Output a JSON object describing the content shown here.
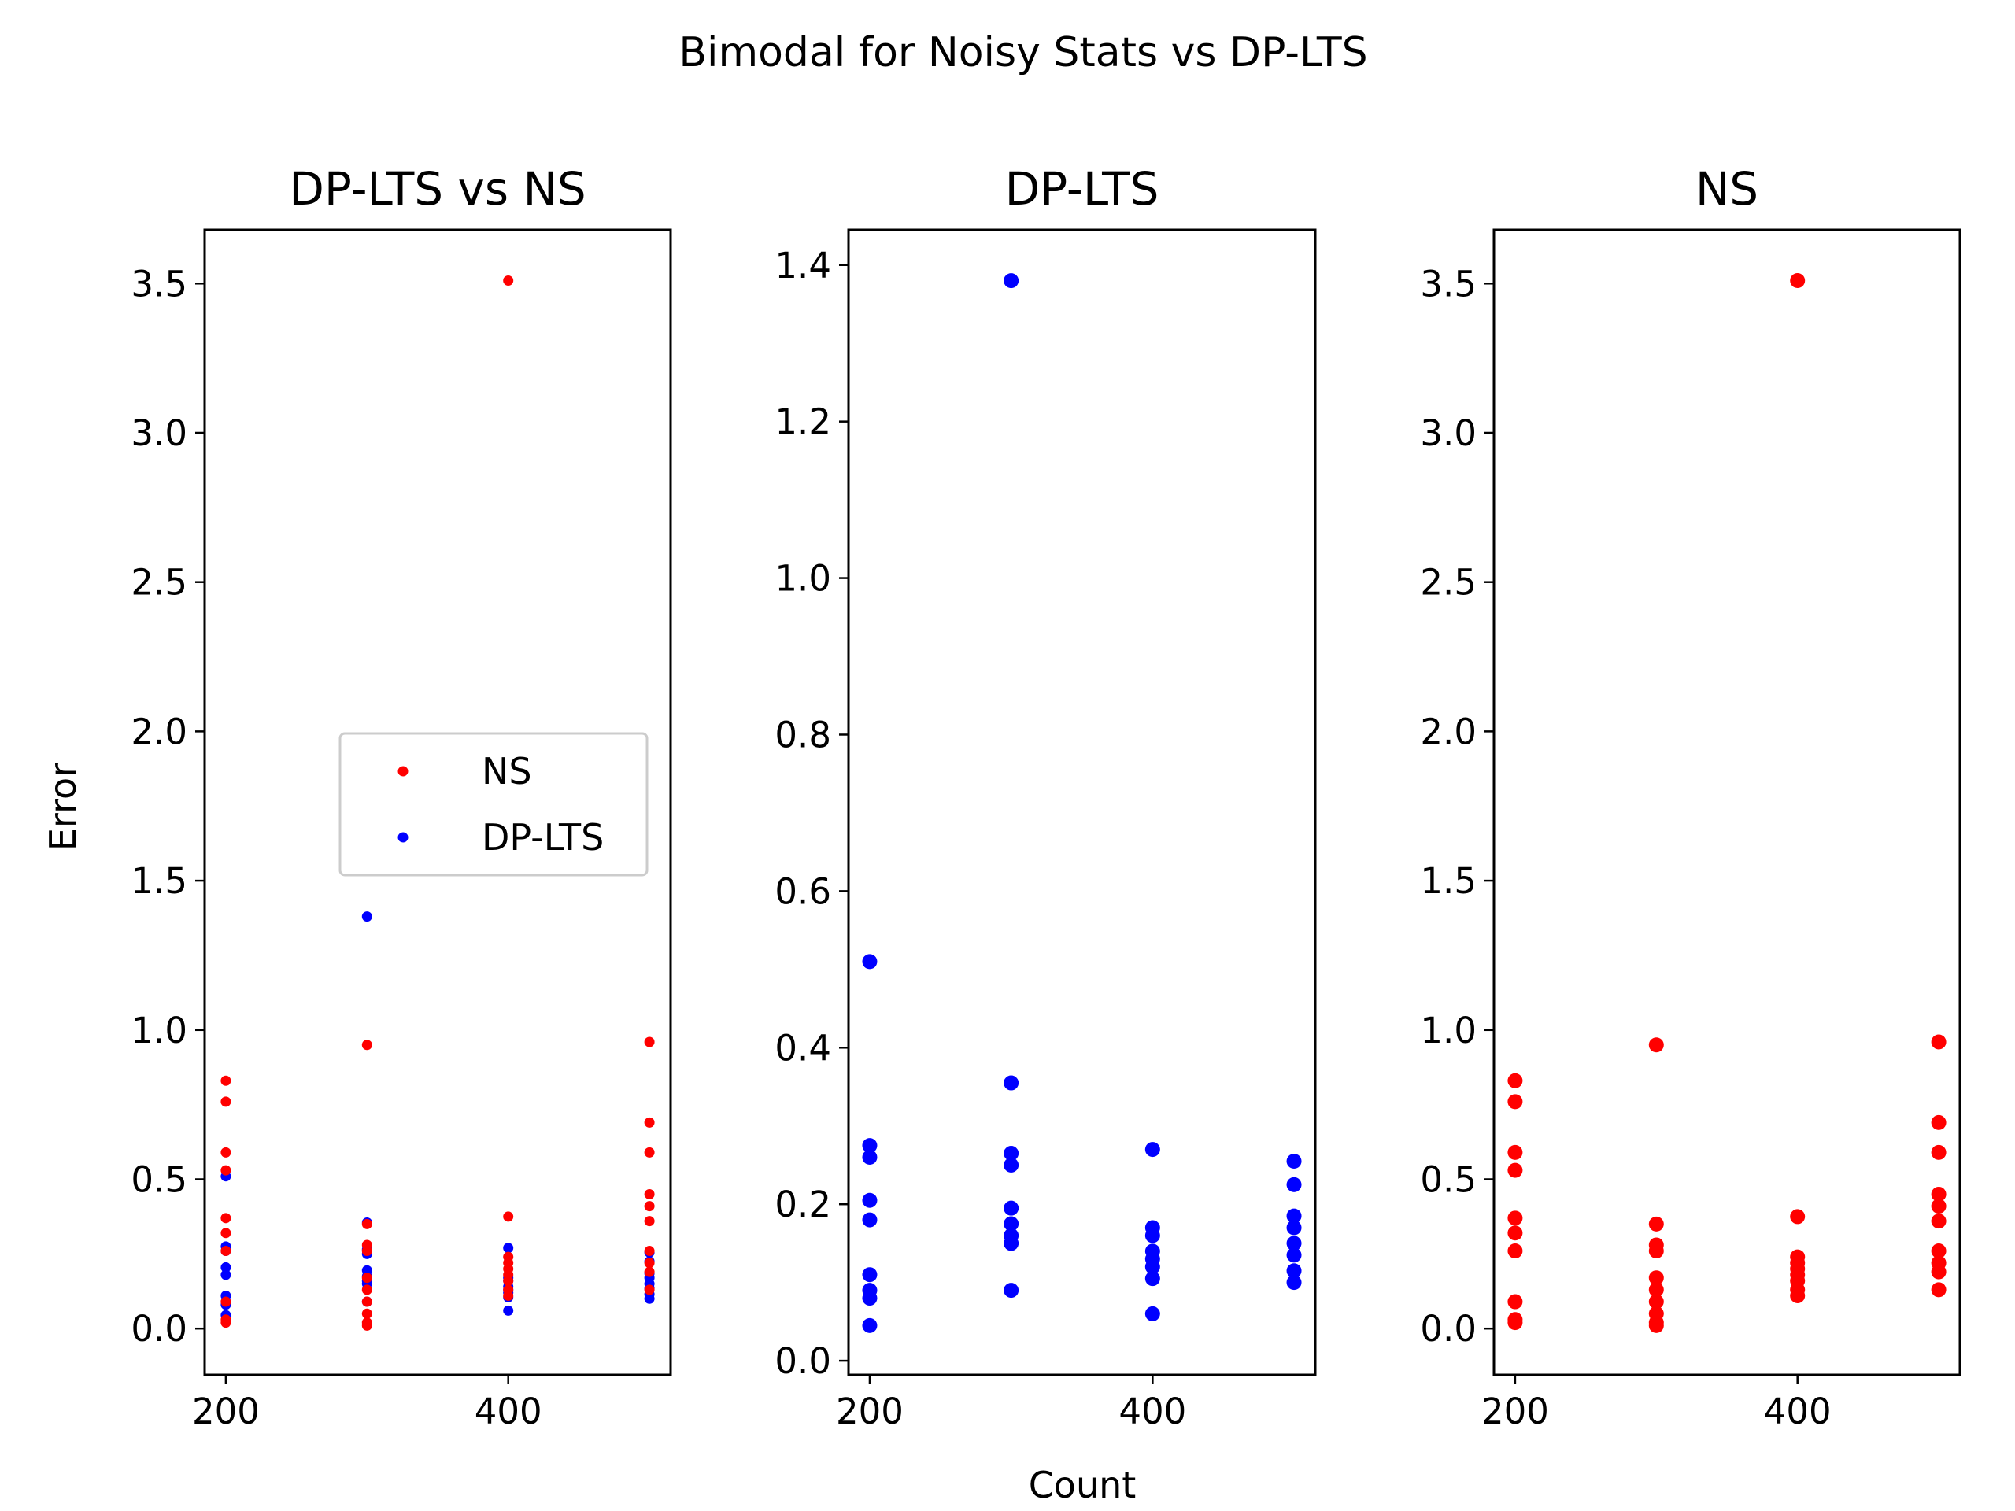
{
  "figure": {
    "suptitle": "Bimodal for Noisy Stats vs DP-LTS",
    "xlabel": "Count",
    "ylabel": "Error"
  },
  "colors": {
    "NS": "#ff0000",
    "DP-LTS": "#0000ff"
  },
  "legend": {
    "entries": [
      "NS",
      "DP-LTS"
    ],
    "placement": "center-right"
  },
  "chart_data": [
    {
      "type": "scatter",
      "title": "DP-LTS vs NS",
      "xlabel": "",
      "ylabel": "Error",
      "xlim": [
        185,
        515
      ],
      "ylim": [
        -0.155,
        3.68
      ],
      "xticks": [
        "200",
        "400"
      ],
      "yticks": [
        "0.0",
        "0.5",
        "1.0",
        "1.5",
        "2.0",
        "2.5",
        "3.0",
        "3.5"
      ],
      "legend": [
        "NS",
        "DP-LTS"
      ],
      "series": [
        {
          "name": "NS",
          "points": [
            [
              200,
              0.83
            ],
            [
              200,
              0.76
            ],
            [
              200,
              0.59
            ],
            [
              200,
              0.53
            ],
            [
              200,
              0.37
            ],
            [
              200,
              0.32
            ],
            [
              200,
              0.26
            ],
            [
              200,
              0.09
            ],
            [
              200,
              0.03
            ],
            [
              200,
              0.02
            ],
            [
              300,
              0.95
            ],
            [
              300,
              0.35
            ],
            [
              300,
              0.28
            ],
            [
              300,
              0.26
            ],
            [
              300,
              0.17
            ],
            [
              300,
              0.13
            ],
            [
              300,
              0.09
            ],
            [
              300,
              0.05
            ],
            [
              300,
              0.02
            ],
            [
              300,
              0.01
            ],
            [
              400,
              3.51
            ],
            [
              400,
              0.375
            ],
            [
              400,
              0.24
            ],
            [
              400,
              0.22
            ],
            [
              400,
              0.2
            ],
            [
              400,
              0.18
            ],
            [
              400,
              0.16
            ],
            [
              400,
              0.13
            ],
            [
              400,
              0.11
            ],
            [
              500,
              0.96
            ],
            [
              500,
              0.69
            ],
            [
              500,
              0.59
            ],
            [
              500,
              0.45
            ],
            [
              500,
              0.41
            ],
            [
              500,
              0.36
            ],
            [
              500,
              0.26
            ],
            [
              500,
              0.22
            ],
            [
              500,
              0.19
            ],
            [
              500,
              0.13
            ]
          ]
        },
        {
          "name": "DP-LTS",
          "points": [
            [
              200,
              0.51
            ],
            [
              200,
              0.275
            ],
            [
              200,
              0.26
            ],
            [
              200,
              0.205
            ],
            [
              200,
              0.18
            ],
            [
              200,
              0.11
            ],
            [
              200,
              0.09
            ],
            [
              200,
              0.08
            ],
            [
              200,
              0.045
            ],
            [
              300,
              1.38
            ],
            [
              300,
              0.355
            ],
            [
              300,
              0.265
            ],
            [
              300,
              0.25
            ],
            [
              300,
              0.195
            ],
            [
              300,
              0.175
            ],
            [
              300,
              0.16
            ],
            [
              300,
              0.15
            ],
            [
              300,
              0.09
            ],
            [
              400,
              0.27
            ],
            [
              400,
              0.17
            ],
            [
              400,
              0.16
            ],
            [
              400,
              0.14
            ],
            [
              400,
              0.13
            ],
            [
              400,
              0.12
            ],
            [
              400,
              0.105
            ],
            [
              400,
              0.06
            ],
            [
              500,
              0.255
            ],
            [
              500,
              0.225
            ],
            [
              500,
              0.185
            ],
            [
              500,
              0.17
            ],
            [
              500,
              0.15
            ],
            [
              500,
              0.135
            ],
            [
              500,
              0.115
            ],
            [
              500,
              0.1
            ]
          ]
        }
      ]
    },
    {
      "type": "scatter",
      "title": "DP-LTS",
      "xlabel": "Count",
      "ylabel": "",
      "xlim": [
        185,
        515
      ],
      "ylim": [
        -0.018,
        1.445
      ],
      "xticks": [
        "200",
        "400"
      ],
      "yticks": [
        "0.0",
        "0.2",
        "0.4",
        "0.6",
        "0.8",
        "1.0",
        "1.2",
        "1.4"
      ],
      "series": [
        {
          "name": "DP-LTS",
          "points": [
            [
              200,
              0.51
            ],
            [
              200,
              0.275
            ],
            [
              200,
              0.26
            ],
            [
              200,
              0.205
            ],
            [
              200,
              0.18
            ],
            [
              200,
              0.11
            ],
            [
              200,
              0.09
            ],
            [
              200,
              0.08
            ],
            [
              200,
              0.045
            ],
            [
              300,
              1.38
            ],
            [
              300,
              0.355
            ],
            [
              300,
              0.265
            ],
            [
              300,
              0.25
            ],
            [
              300,
              0.195
            ],
            [
              300,
              0.175
            ],
            [
              300,
              0.16
            ],
            [
              300,
              0.15
            ],
            [
              300,
              0.09
            ],
            [
              400,
              0.27
            ],
            [
              400,
              0.17
            ],
            [
              400,
              0.16
            ],
            [
              400,
              0.14
            ],
            [
              400,
              0.13
            ],
            [
              400,
              0.12
            ],
            [
              400,
              0.105
            ],
            [
              400,
              0.06
            ],
            [
              500,
              0.255
            ],
            [
              500,
              0.225
            ],
            [
              500,
              0.185
            ],
            [
              500,
              0.17
            ],
            [
              500,
              0.15
            ],
            [
              500,
              0.135
            ],
            [
              500,
              0.115
            ],
            [
              500,
              0.1
            ]
          ]
        }
      ]
    },
    {
      "type": "scatter",
      "title": "NS",
      "xlabel": "",
      "ylabel": "",
      "xlim": [
        185,
        515
      ],
      "ylim": [
        -0.155,
        3.68
      ],
      "xticks": [
        "200",
        "400"
      ],
      "yticks": [
        "0.0",
        "0.5",
        "1.0",
        "1.5",
        "2.0",
        "2.5",
        "3.0",
        "3.5"
      ],
      "series": [
        {
          "name": "NS",
          "points": [
            [
              200,
              0.83
            ],
            [
              200,
              0.76
            ],
            [
              200,
              0.59
            ],
            [
              200,
              0.53
            ],
            [
              200,
              0.37
            ],
            [
              200,
              0.32
            ],
            [
              200,
              0.26
            ],
            [
              200,
              0.09
            ],
            [
              200,
              0.03
            ],
            [
              200,
              0.02
            ],
            [
              300,
              0.95
            ],
            [
              300,
              0.35
            ],
            [
              300,
              0.28
            ],
            [
              300,
              0.26
            ],
            [
              300,
              0.17
            ],
            [
              300,
              0.13
            ],
            [
              300,
              0.09
            ],
            [
              300,
              0.05
            ],
            [
              300,
              0.02
            ],
            [
              300,
              0.01
            ],
            [
              400,
              3.51
            ],
            [
              400,
              0.375
            ],
            [
              400,
              0.24
            ],
            [
              400,
              0.22
            ],
            [
              400,
              0.2
            ],
            [
              400,
              0.18
            ],
            [
              400,
              0.16
            ],
            [
              400,
              0.13
            ],
            [
              400,
              0.11
            ],
            [
              500,
              0.96
            ],
            [
              500,
              0.69
            ],
            [
              500,
              0.59
            ],
            [
              500,
              0.45
            ],
            [
              500,
              0.41
            ],
            [
              500,
              0.36
            ],
            [
              500,
              0.26
            ],
            [
              500,
              0.22
            ],
            [
              500,
              0.19
            ],
            [
              500,
              0.13
            ]
          ]
        }
      ]
    }
  ]
}
